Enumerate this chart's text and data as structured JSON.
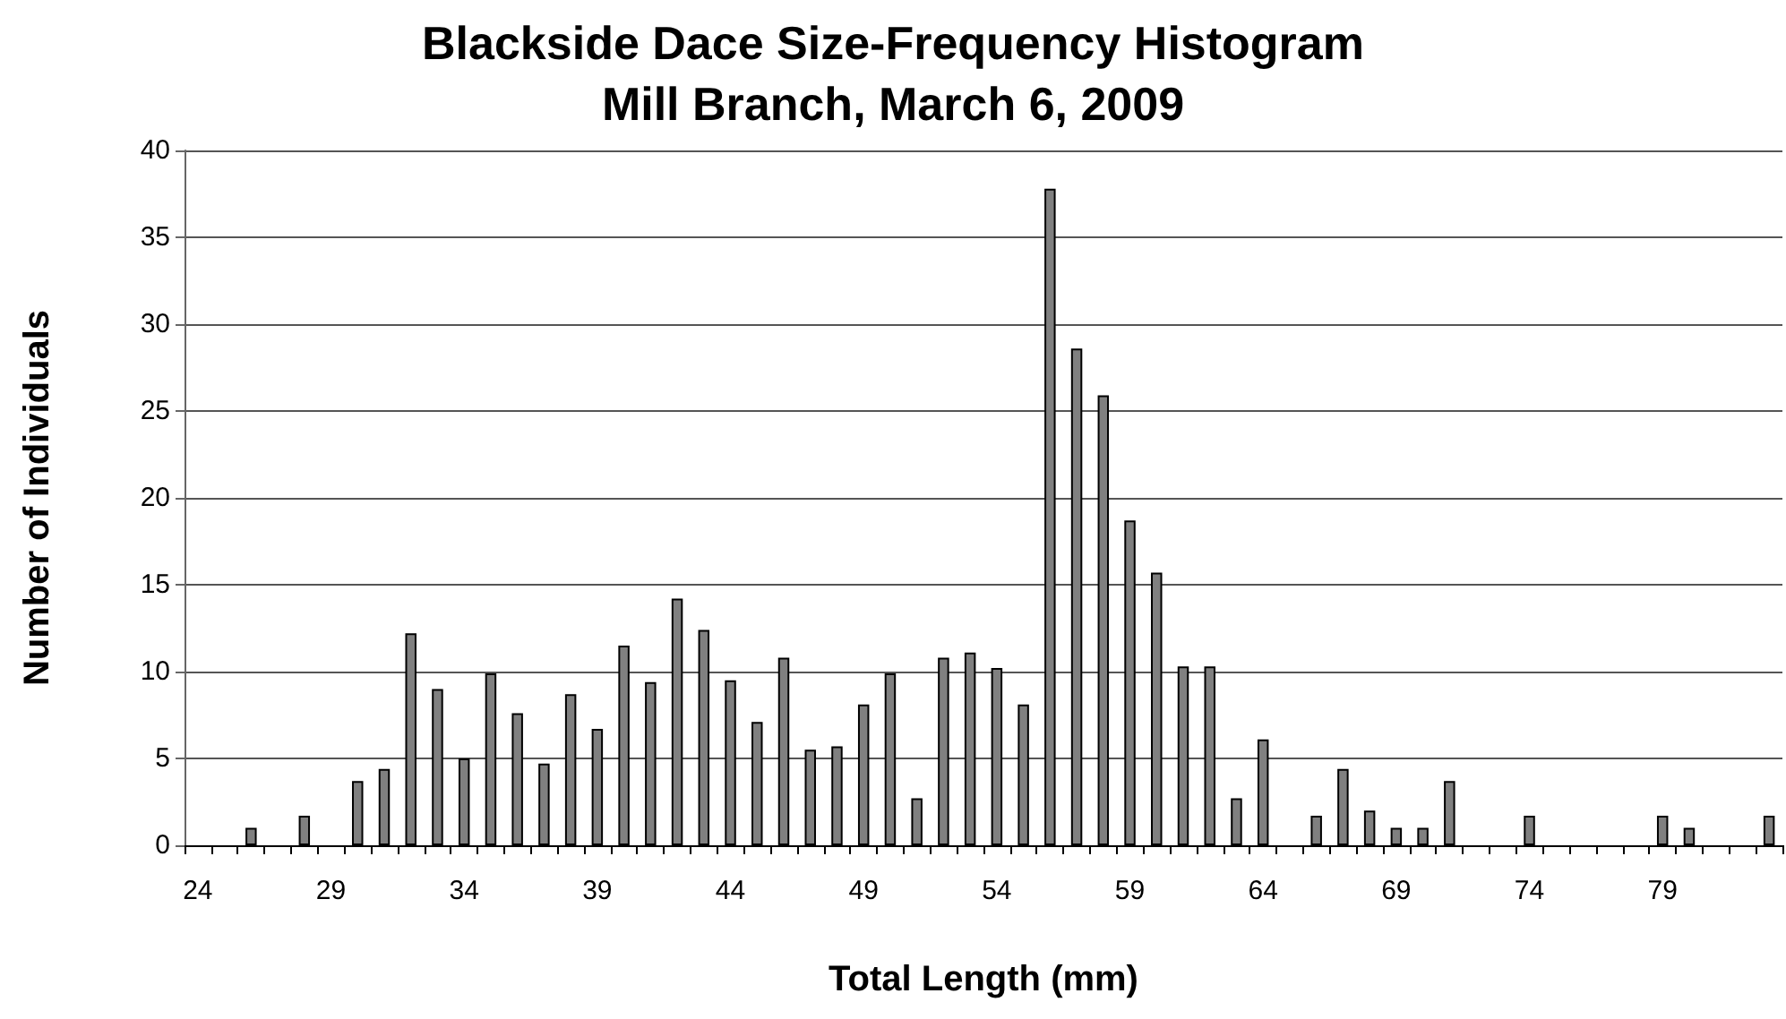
{
  "chart_data": {
    "type": "bar",
    "title": "Blackside Dace Size-Frequency Histogram",
    "subtitle": "Mill Branch, March 6, 2009",
    "xlabel": "Total Length (mm)",
    "ylabel": "Number of Individuals",
    "categories": [
      "24",
      null,
      null,
      null,
      null,
      "29",
      null,
      null,
      null,
      null,
      "34",
      null,
      null,
      null,
      null,
      "39",
      null,
      null,
      null,
      null,
      "44",
      null,
      null,
      null,
      null,
      "49",
      null,
      null,
      null,
      null,
      "54",
      null,
      null,
      null,
      null,
      "59",
      null,
      null,
      null,
      null,
      "64",
      null,
      null,
      null,
      null,
      "69",
      null,
      null,
      null,
      null,
      "74",
      null,
      null,
      null,
      null,
      "79",
      null,
      null,
      null,
      null
    ],
    "values": [
      0,
      0,
      1,
      0,
      1.7,
      0,
      3.7,
      4.4,
      12.2,
      9,
      5,
      9.9,
      7.6,
      4.7,
      8.7,
      6.7,
      11.5,
      9.4,
      14.2,
      12.4,
      9.5,
      7.1,
      10.8,
      5.5,
      5.7,
      8.1,
      9.9,
      2.7,
      10.8,
      11.1,
      10.2,
      8.1,
      37.8,
      28.6,
      25.9,
      18.7,
      15.7,
      10.3,
      10.3,
      2.7,
      6.1,
      0,
      1.7,
      4.4,
      2,
      1,
      1,
      3.7,
      0,
      0,
      1.7,
      0,
      0,
      0,
      0,
      1.7,
      1,
      0,
      0,
      1.7
    ],
    "color": "#808080",
    "ylim": [
      0,
      40
    ],
    "yticks": [
      0,
      5,
      10,
      15,
      20,
      25,
      30,
      35,
      40
    ],
    "grid": "y"
  }
}
